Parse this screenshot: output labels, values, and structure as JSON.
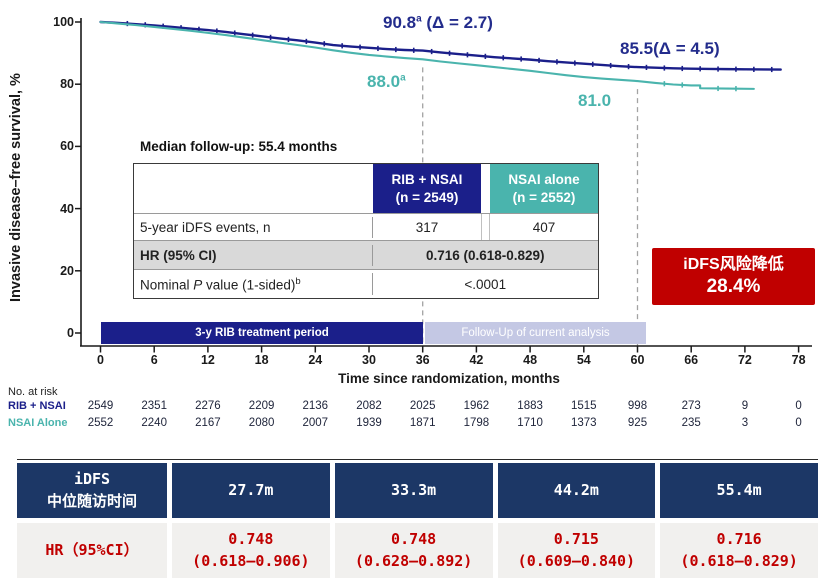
{
  "colors": {
    "navy": "#1b1f8a",
    "teal": "#4ab4ad",
    "annotation_navy": "#232c8c",
    "bottom_header_navy": "#1c3766",
    "badge_red": "#c00000",
    "lavender_bar": "#c4c8e4",
    "gray_row": "#d9d9d9",
    "bottom_row_bg": "#f1f0ee"
  },
  "chart_data": {
    "type": "line",
    "title": "",
    "ylabel": "Invasive disease–free survival, %",
    "xlabel": "Time since randomization, months",
    "xlim": [
      0,
      78
    ],
    "ylim": [
      0,
      100
    ],
    "x_ticks": [
      0,
      6,
      12,
      18,
      24,
      30,
      36,
      42,
      48,
      54,
      60,
      66,
      72,
      78
    ],
    "y_ticks": [
      0,
      20,
      40,
      60,
      80,
      100
    ],
    "grid": false,
    "dashed_vlines_months": [
      36,
      60
    ],
    "series": [
      {
        "name": "RIB + NSAI",
        "color": "#1b1f8a",
        "points": [
          [
            0,
            100
          ],
          [
            2,
            99.7
          ],
          [
            4,
            99.3
          ],
          [
            6,
            98.9
          ],
          [
            8,
            98.4
          ],
          [
            10,
            97.9
          ],
          [
            12,
            97.4
          ],
          [
            14,
            96.8
          ],
          [
            16,
            96.1
          ],
          [
            18,
            95.4
          ],
          [
            20,
            94.7
          ],
          [
            22,
            94.1
          ],
          [
            24,
            93.4
          ],
          [
            26,
            92.6
          ],
          [
            28,
            92.1
          ],
          [
            30,
            91.7
          ],
          [
            32,
            91.3
          ],
          [
            34,
            91.0
          ],
          [
            36,
            90.8
          ],
          [
            38,
            90.2
          ],
          [
            40,
            89.7
          ],
          [
            42,
            89.2
          ],
          [
            44,
            88.7
          ],
          [
            46,
            88.3
          ],
          [
            48,
            87.9
          ],
          [
            50,
            87.4
          ],
          [
            52,
            87.0
          ],
          [
            54,
            86.6
          ],
          [
            56,
            86.2
          ],
          [
            58,
            85.8
          ],
          [
            60,
            85.5
          ],
          [
            62,
            85.3
          ],
          [
            64,
            85.1
          ],
          [
            66,
            85.0
          ],
          [
            68,
            84.9
          ],
          [
            70,
            84.85
          ],
          [
            72,
            84.8
          ],
          [
            76,
            84.7
          ]
        ],
        "censor_months": [
          3,
          5,
          7,
          9,
          11,
          13,
          15,
          17,
          19,
          21,
          23,
          25,
          27,
          29,
          31,
          33,
          35,
          37,
          39,
          41,
          43,
          45,
          47,
          49,
          51,
          53,
          55,
          57,
          59,
          61,
          63,
          65,
          67,
          69,
          71,
          73,
          75
        ]
      },
      {
        "name": "NSAI Alone",
        "color": "#4ab4ad",
        "points": [
          [
            0,
            100
          ],
          [
            2,
            99.5
          ],
          [
            4,
            99.0
          ],
          [
            6,
            98.4
          ],
          [
            8,
            97.8
          ],
          [
            10,
            97.2
          ],
          [
            12,
            96.5
          ],
          [
            14,
            95.8
          ],
          [
            16,
            95.0
          ],
          [
            18,
            94.2
          ],
          [
            20,
            93.4
          ],
          [
            22,
            92.6
          ],
          [
            24,
            91.8
          ],
          [
            26,
            90.9
          ],
          [
            28,
            90.1
          ],
          [
            30,
            89.4
          ],
          [
            32,
            88.9
          ],
          [
            34,
            88.4
          ],
          [
            36,
            88.0
          ],
          [
            38,
            87.3
          ],
          [
            40,
            86.7
          ],
          [
            42,
            86.1
          ],
          [
            44,
            85.5
          ],
          [
            46,
            84.9
          ],
          [
            48,
            84.3
          ],
          [
            50,
            83.6
          ],
          [
            52,
            82.9
          ],
          [
            54,
            82.3
          ],
          [
            56,
            81.8
          ],
          [
            58,
            81.4
          ],
          [
            60,
            81.0
          ],
          [
            62,
            80.4
          ],
          [
            64,
            79.9
          ],
          [
            66,
            79.6
          ],
          [
            67,
            79.6
          ],
          [
            67,
            78.7
          ],
          [
            70,
            78.6
          ],
          [
            73,
            78.5
          ]
        ],
        "censor_months": [
          63,
          65,
          69,
          71
        ]
      }
    ],
    "annotations": [
      {
        "main": "90.8",
        "sup": "a",
        "rest": " (Δ = 2.7)",
        "color": "#232c8c"
      },
      {
        "main": "85.5",
        "sup": "",
        "rest": "(Δ = 4.5)",
        "color": "#232c8c"
      },
      {
        "main": "88.0",
        "sup": "a",
        "rest": "",
        "color": "#4ab4ad"
      },
      {
        "main": "81.0",
        "sup": "",
        "rest": "",
        "color": "#4ab4ad"
      }
    ]
  },
  "median_followup_title": "Median follow-up: 55.4 months",
  "results_table": {
    "col_headers": [
      {
        "line1": "RIB + NSAI",
        "line2": "(n = 2549)"
      },
      {
        "line1": "NSAI alone",
        "line2": "(n = 2552)"
      }
    ],
    "events_row": {
      "label": "5-year iDFS events, n",
      "rib": "317",
      "nsai": "407"
    },
    "hr_row": {
      "label": "HR (95% CI)",
      "value": "0.716 (0.618-0.829)"
    },
    "p_row": {
      "label_pre": "Nominal ",
      "label_italic": "P",
      "label_post": " value (1-sided)",
      "label_sup": "b",
      "value": "<.0001"
    }
  },
  "risk_badge": {
    "line1": "iDFS风险降低",
    "line2": "28.4%"
  },
  "treatment_bars": [
    {
      "label": "3-y RIB treatment period"
    },
    {
      "label": "Follow-Up of current analysis"
    }
  ],
  "at_risk": {
    "title": "No. at risk",
    "rows": [
      {
        "label": "RIB + NSAI",
        "values": [
          2549,
          2351,
          2276,
          2209,
          2136,
          2082,
          2025,
          1962,
          1883,
          1515,
          998,
          273,
          9,
          0
        ]
      },
      {
        "label": "NSAI Alone",
        "values": [
          2552,
          2240,
          2167,
          2080,
          2007,
          1939,
          1871,
          1798,
          1710,
          1373,
          925,
          235,
          3,
          0
        ]
      }
    ]
  },
  "bottom_table": {
    "header_label_line1": "iDFS",
    "header_label_line2": "中位随访时间",
    "columns": [
      "27.7m",
      "33.3m",
      "44.2m",
      "55.4m"
    ],
    "row_label": "HR（95%CI）",
    "values": [
      {
        "hr": "0.748",
        "ci": "(0.618–0.906)"
      },
      {
        "hr": "0.748",
        "ci": "(0.628–0.892)"
      },
      {
        "hr": "0.715",
        "ci": "(0.609–0.840)"
      },
      {
        "hr": "0.716",
        "ci": "(0.618–0.829)"
      }
    ]
  }
}
